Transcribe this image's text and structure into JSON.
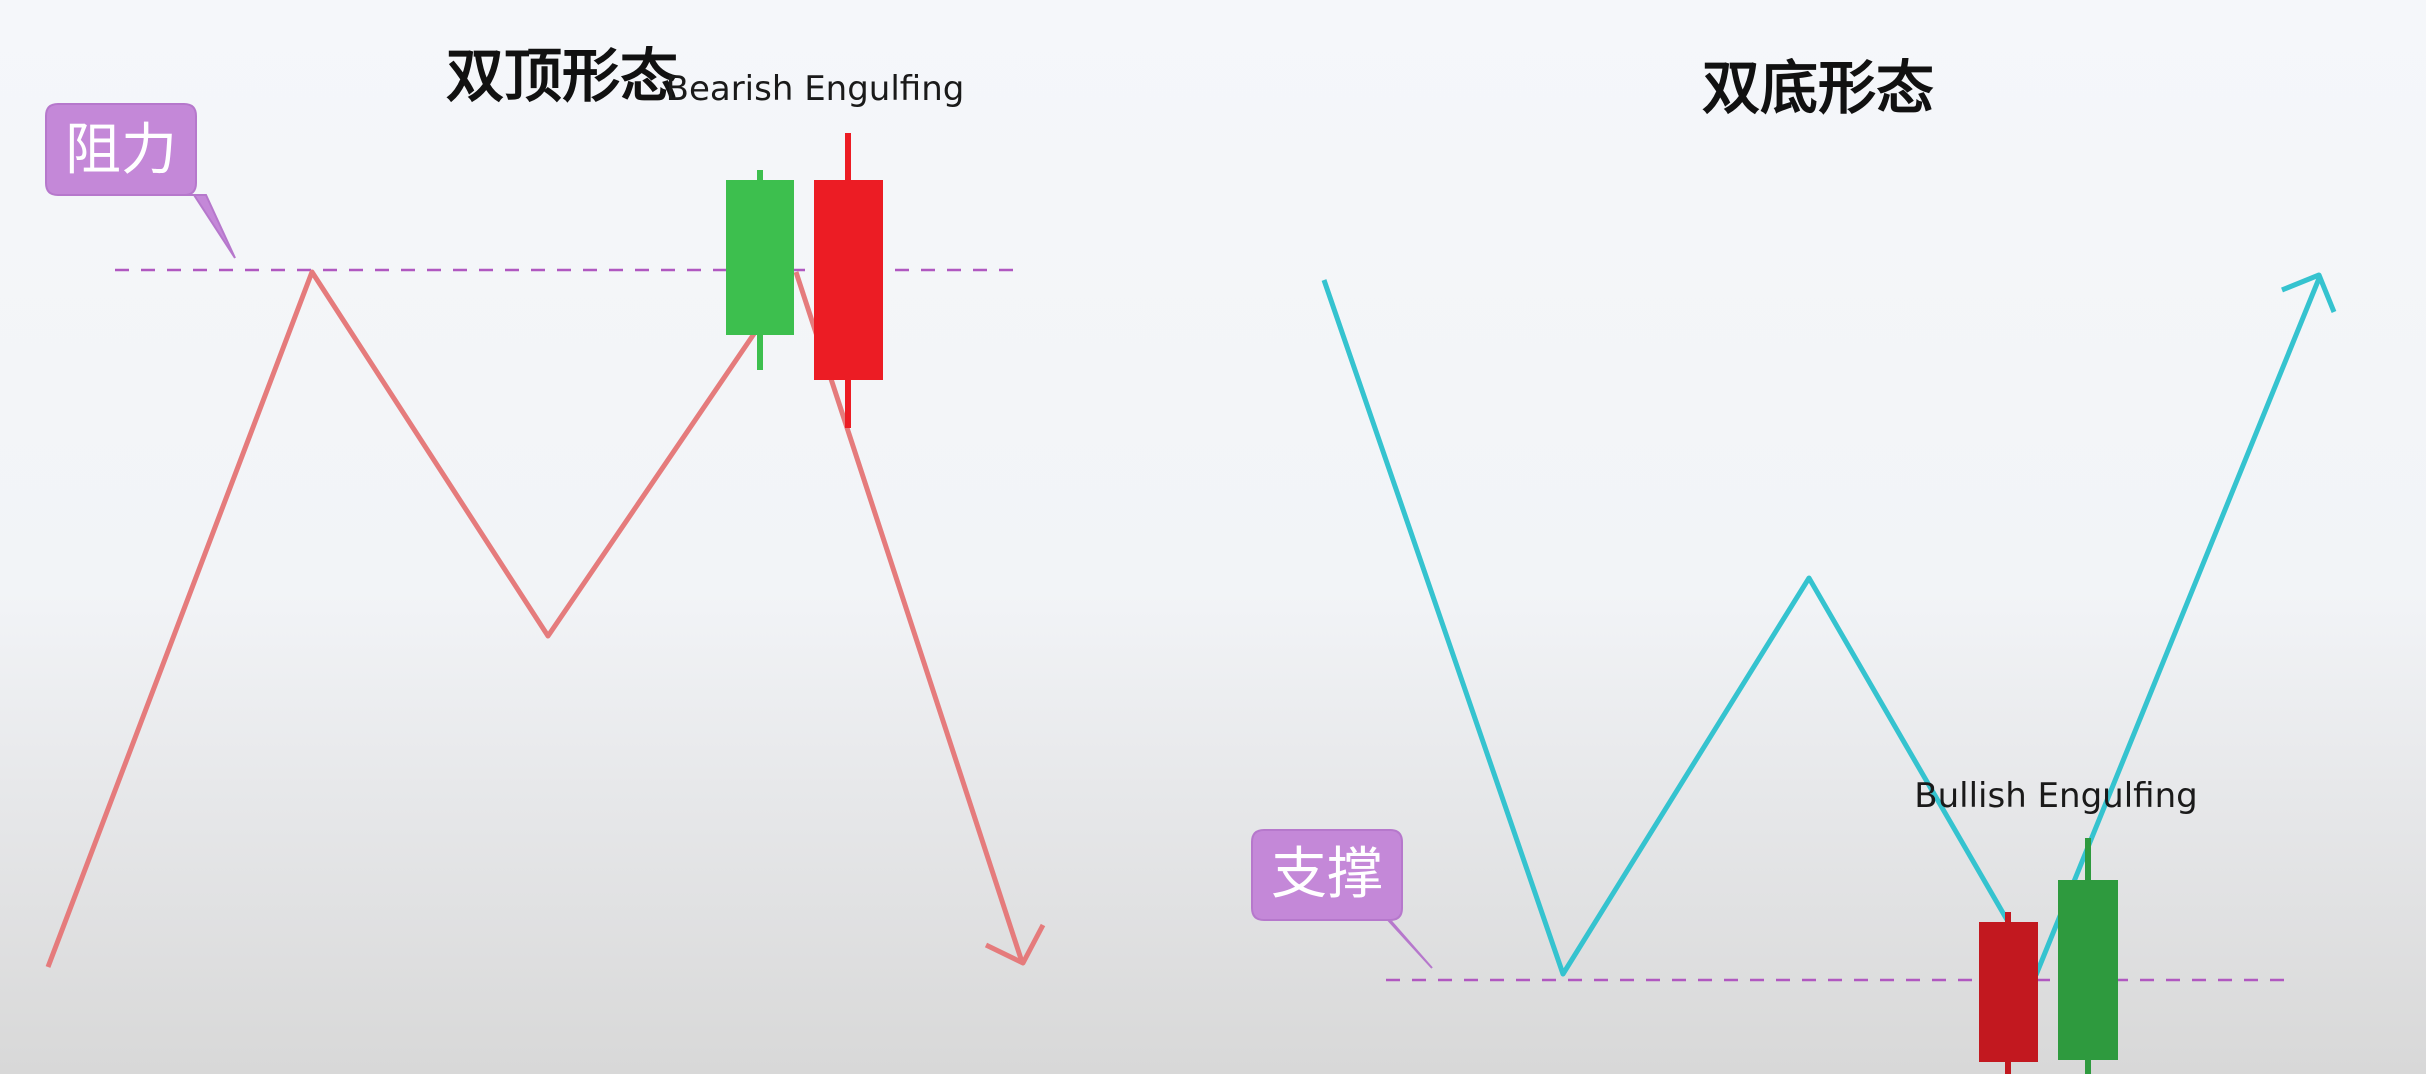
{
  "left_panel": {
    "title": "双顶形态",
    "pattern_label": "Bearish Engulfing",
    "level_label": "阻力"
  },
  "right_panel": {
    "title": "双底形态",
    "pattern_label": "Bullish Engulfing",
    "level_label": "支撑"
  },
  "colors": {
    "left_path": "#e57b7c",
    "right_path": "#35c3cf",
    "dashed_line": "#b058c0",
    "bubble": "#c488d8",
    "bubble_border": "#b678cc",
    "bull_candle_light": "#3dbf4e",
    "bull_candle_dark": "#2e9a3e",
    "bear_candle_light": "#ec1c24",
    "bear_candle_dark": "#c2181f"
  }
}
